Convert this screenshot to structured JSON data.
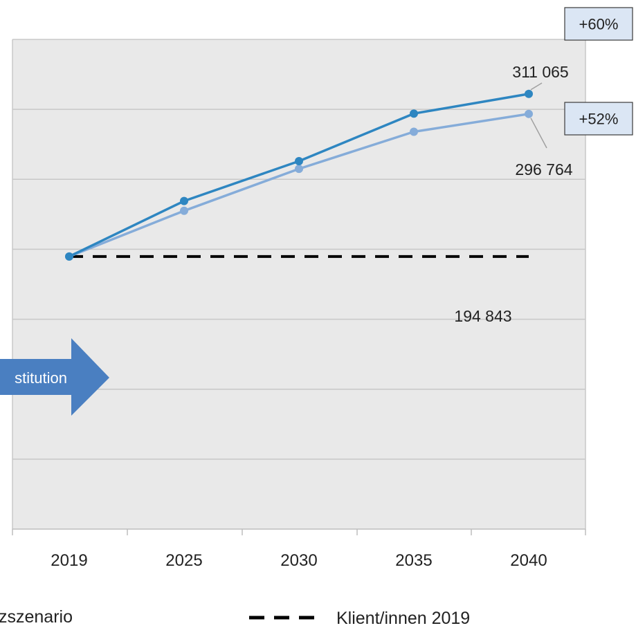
{
  "chart_data": {
    "type": "line",
    "categories": [
      "2019",
      "2025",
      "2030",
      "2035",
      "2040"
    ],
    "ylim": [
      0,
      350000
    ],
    "grid": true,
    "series": [
      {
        "name": "",
        "color": "#2e86c1",
        "values": [
          194843,
          234500,
          263000,
          297000,
          311065
        ]
      },
      {
        "name": "",
        "color": "#85acd9",
        "values": [
          194843,
          227500,
          257500,
          284000,
          296764
        ]
      }
    ],
    "reference_line": {
      "name": "Klient/innen 2019",
      "value": 194843,
      "color": "#000000",
      "style": "dashed"
    },
    "data_labels": [
      {
        "series": 0,
        "index": 4,
        "text": "311 065"
      },
      {
        "series": 1,
        "index": 4,
        "text": "296 764"
      },
      {
        "series": "reference",
        "index": 4,
        "text": "194 843"
      }
    ],
    "callout_boxes": [
      {
        "text": "+60%"
      },
      {
        "text": "+52%"
      }
    ],
    "arrow_annotation": {
      "text": "stitution",
      "color": "#4a7fc1"
    },
    "legend": [
      {
        "text": "zszenario",
        "style": "line"
      },
      {
        "text": "Klient/innen 2019",
        "style": "dashed"
      }
    ],
    "colors": {
      "plot_bg": "#e9e9e9",
      "grid": "#c8c8c8",
      "box_bg": "#dbe6f4"
    }
  }
}
